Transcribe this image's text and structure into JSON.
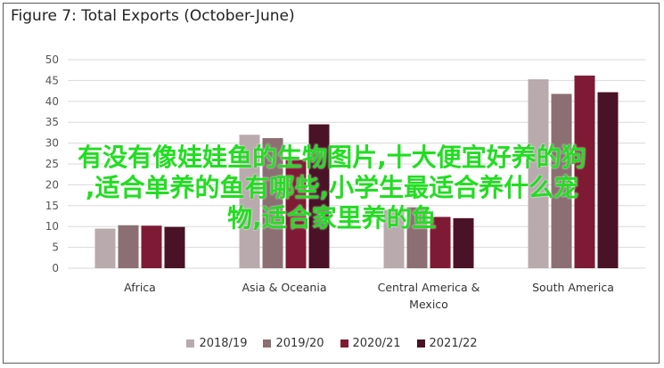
{
  "chart_data": {
    "type": "bar",
    "title": "Figure 7: Total Exports (October-June)",
    "categories": [
      "Africa",
      "Asia & Oceania",
      "Central America & Mexico",
      "South America"
    ],
    "category_lines": [
      [
        "Africa"
      ],
      [
        "Asia & Oceania"
      ],
      [
        "Central America &",
        "Mexico"
      ],
      [
        "South America"
      ]
    ],
    "series": [
      {
        "name": "2018/19",
        "color": "#b8aaad",
        "values": [
          9.5,
          32,
          14,
          45.3
        ]
      },
      {
        "name": "2019/20",
        "color": "#8b6f72",
        "values": [
          10.3,
          31.2,
          14.6,
          41.8
        ]
      },
      {
        "name": "2020/21",
        "color": "#7e1a33",
        "values": [
          10.2,
          26,
          12.3,
          46.2
        ]
      },
      {
        "name": "2021/22",
        "color": "#4a1226",
        "values": [
          9.9,
          34.5,
          12,
          42.2
        ]
      }
    ],
    "ylim": [
      0,
      50
    ],
    "yticks": [
      0,
      5,
      10,
      15,
      20,
      25,
      30,
      35,
      40,
      45,
      50
    ],
    "grid": true,
    "legend_position": "bottom"
  },
  "overlay": {
    "line1": "有没有像娃娃鱼的生物图片,十大便宜好养的狗",
    "line2": ",适合单养的鱼有哪些,小学生最适合养什么宠",
    "line3": "物,适合家里养的鱼"
  }
}
